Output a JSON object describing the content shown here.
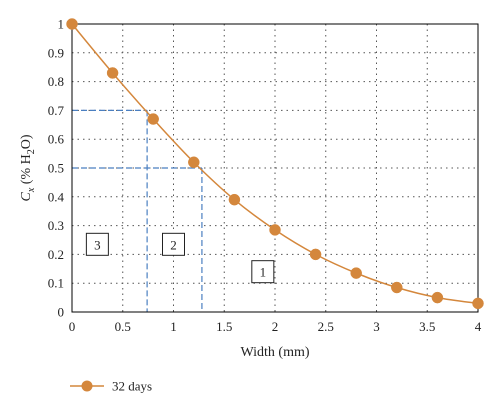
{
  "chart_data": {
    "type": "line",
    "xlabel": "Width (mm)",
    "ylabel": {
      "base": "C",
      "sub": "x",
      "rest_open": " (% H",
      "rest_sub": "2",
      "rest_close": "O)"
    },
    "x_ticks": [
      "0",
      "0.5",
      "1",
      "1.5",
      "2",
      "2.5",
      "3",
      "3.5",
      "4"
    ],
    "y_ticks": [
      "0",
      "0.1",
      "0.2",
      "0.3",
      "0.4",
      "0.5",
      "0.6",
      "0.7",
      "0.8",
      "0.9",
      "1"
    ],
    "xlim": [
      0,
      4
    ],
    "ylim": [
      0,
      1
    ],
    "grid": true,
    "series": [
      {
        "name": "32 days",
        "color": "#d4873c",
        "x": [
          0,
          0.4,
          0.8,
          1.2,
          1.6,
          2.0,
          2.4,
          2.8,
          3.2,
          3.6,
          4.0
        ],
        "y": [
          1.0,
          0.83,
          0.67,
          0.52,
          0.39,
          0.285,
          0.2,
          0.135,
          0.085,
          0.05,
          0.03
        ]
      }
    ],
    "guide_lines": {
      "color": "#4a7fc1",
      "levels": [
        {
          "y": 0.7,
          "x": 0.74
        },
        {
          "y": 0.5,
          "x": 1.28
        }
      ]
    },
    "region_labels": [
      {
        "text": "3",
        "x": 0.25,
        "y": 0.235
      },
      {
        "text": "2",
        "x": 1.0,
        "y": 0.235
      },
      {
        "text": "1",
        "x": 1.88,
        "y": 0.14
      }
    ],
    "legend": {
      "position": "bottom-left",
      "label": "32 days"
    }
  }
}
